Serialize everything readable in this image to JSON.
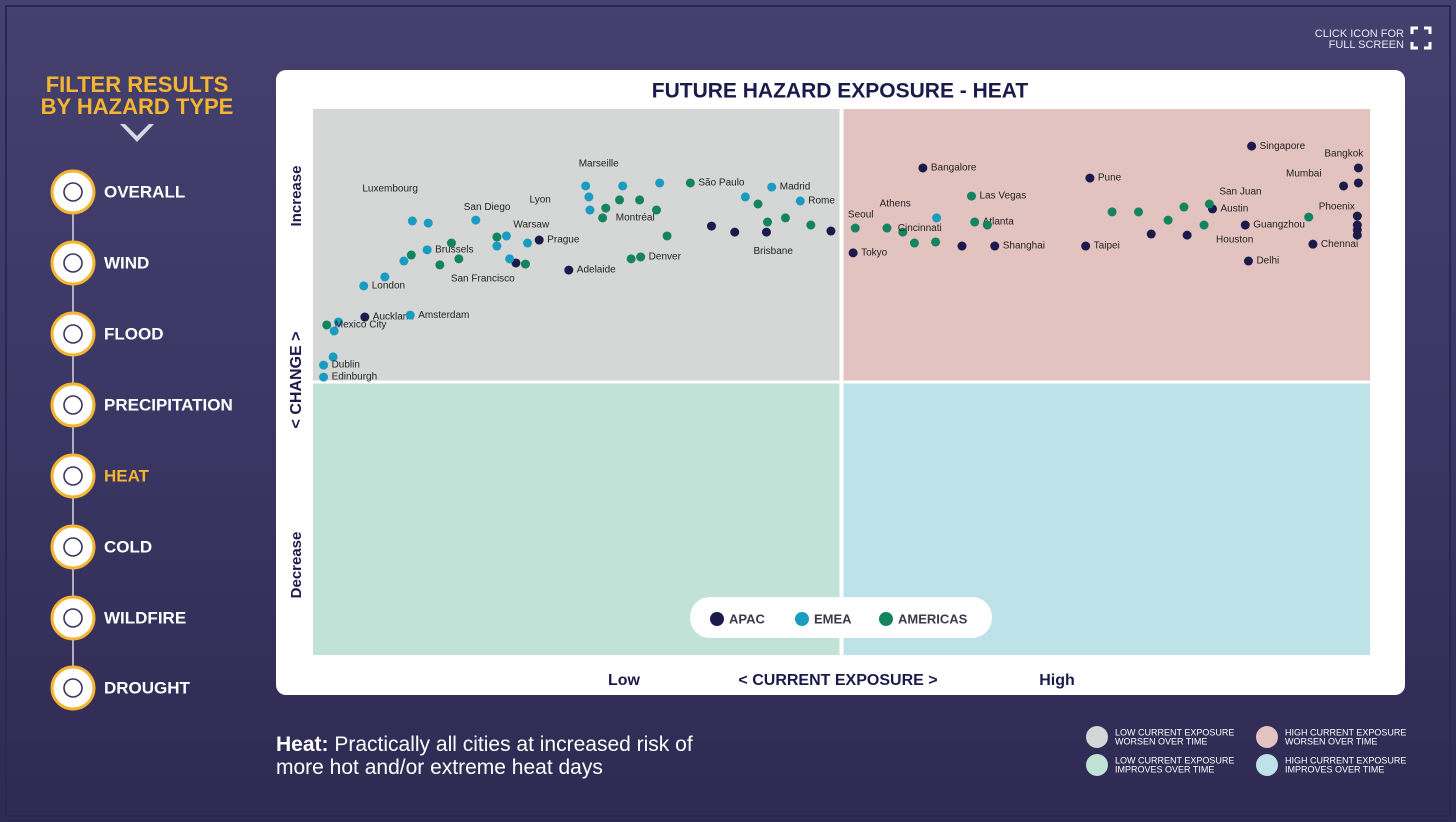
{
  "header": {
    "fullscreen_hint": [
      "CLICK ICON FOR",
      "FULL SCREEN"
    ]
  },
  "sidebar": {
    "title": [
      "FILTER RESULTS",
      "BY HAZARD TYPE"
    ],
    "items": [
      {
        "label": "OVERALL",
        "selected": false
      },
      {
        "label": "WIND",
        "selected": false
      },
      {
        "label": "FLOOD",
        "selected": false
      },
      {
        "label": "PRECIPITATION",
        "selected": false
      },
      {
        "label": "HEAT",
        "selected": true
      },
      {
        "label": "COLD",
        "selected": false
      },
      {
        "label": "WILDFIRE",
        "selected": false
      },
      {
        "label": "DROUGHT",
        "selected": false
      }
    ]
  },
  "chart_data": {
    "type": "scatter",
    "title": "FUTURE HAZARD EXPOSURE - HEAT",
    "xlabel": "< CURRENT EXPOSURE >",
    "x_low_label": "Low",
    "x_high_label": "High",
    "ylabel": "< CHANGE >",
    "y_high_label": "Increase",
    "y_low_label": "Decrease",
    "xlim": [
      0,
      100
    ],
    "ylim": [
      -100,
      100
    ],
    "series": [
      {
        "name": "APAC",
        "color": "#1c1a4a",
        "x": [
          57.7,
          88.8,
          98.9,
          97.5,
          98.9,
          73.5,
          49.0,
          51.1,
          64.5,
          61.4,
          73.1,
          42.9,
          37.7,
          39.9,
          24.2,
          4.9,
          21.4,
          19.2,
          85.1,
          88.2,
          82.7,
          79.3,
          88.5,
          94.6,
          98.8,
          98.8,
          98.8,
          98.8
        ],
        "values": [
          78.4,
          86.4,
          78.4,
          71.8,
          72.9,
          74.7,
          55.3,
          47.3,
          49.8,
          49.8,
          49.8,
          54.9,
          57.1,
          54.9,
          41.0,
          23.8,
          52.0,
          43.6,
          63.4,
          57.5,
          53.8,
          54.2,
          44.3,
          50.5,
          60.8,
          57.5,
          55.7,
          53.8
        ],
        "labels": [
          "Bangalore",
          "Singapore",
          "Bangkok",
          "Mumbai",
          null,
          "Pune",
          "Seoul",
          "Tokyo",
          "Shanghai",
          null,
          "Taipei",
          "Brisbane",
          null,
          null,
          "Adelaide",
          "Auckland",
          "Prague",
          null,
          "Austin",
          "Guangzhou",
          null,
          null,
          "Delhi",
          "Chennai",
          null,
          null,
          null,
          null
        ]
      },
      {
        "name": "EMEA",
        "color": "#1a9cc0",
        "x": [
          9.4,
          10.9,
          25.8,
          29.3,
          32.8,
          26.1,
          26.2,
          43.4,
          40.9,
          46.1,
          15.4,
          18.3,
          17.4,
          20.3,
          18.6,
          10.8,
          8.6,
          6.8,
          4.8,
          9.2,
          2.4,
          2.0,
          1.9,
          1.0,
          1.0,
          59.0
        ],
        "values": [
          59.0,
          58.2,
          71.8,
          71.8,
          72.9,
          67.8,
          63.0,
          71.4,
          67.8,
          66.3,
          59.3,
          53.5,
          49.8,
          50.9,
          45.1,
          48.4,
          44.3,
          38.5,
          35.2,
          24.5,
          22.0,
          18.7,
          9.2,
          6.2,
          1.8,
          60.1
        ],
        "labels": [
          "Luxembourg",
          null,
          "Marseille",
          null,
          null,
          "Lyon",
          null,
          "Madrid",
          null,
          "Rome",
          "San Diego",
          "Warsaw",
          null,
          null,
          null,
          "Brussels",
          null,
          null,
          "London",
          "Amsterdam",
          null,
          null,
          null,
          "Dublin",
          "Edinburgh",
          "Athens"
        ]
      },
      {
        "name": "AMERICAS",
        "color": "#13845d",
        "x": [
          35.7,
          27.7,
          29.0,
          30.9,
          27.4,
          32.5,
          33.5,
          31.0,
          30.1,
          42.1,
          43.0,
          44.7,
          47.1,
          12.0,
          13.8,
          13.1,
          9.3,
          17.4,
          20.1,
          1.3,
          55.8,
          56.9,
          58.9,
          54.3,
          51.3,
          62.3,
          62.6,
          63.8,
          84.8,
          82.4,
          75.6,
          78.1,
          80.9,
          84.3,
          94.2
        ],
        "values": [
          72.9,
          63.7,
          66.7,
          66.7,
          60.1,
          63.0,
          53.5,
          45.8,
          45.1,
          65.2,
          58.6,
          60.1,
          57.5,
          42.9,
          45.1,
          50.9,
          46.5,
          53.1,
          43.2,
          20.9,
          54.9,
          50.9,
          51.3,
          56.4,
          56.4,
          68.1,
          58.6,
          57.5,
          65.2,
          64.1,
          62.3,
          62.3,
          59.3,
          57.5,
          60.4
        ],
        "labels": [
          "São Paulo",
          "Montréal",
          null,
          null,
          null,
          null,
          null,
          "Denver",
          null,
          null,
          null,
          null,
          null,
          "San Francisco",
          null,
          null,
          null,
          null,
          null,
          "Mexico City",
          "Cincinnati",
          null,
          null,
          null,
          null,
          "Las Vegas",
          "Atlanta",
          null,
          "San Juan",
          null,
          null,
          null,
          null,
          "Houston",
          "Phoenix"
        ]
      }
    ]
  },
  "caption": {
    "lead": "Heat:",
    "text": "Practically all cities at increased risk of more hot and/or extreme heat days"
  },
  "quadrant_legend": [
    {
      "lines": [
        "LOW CURRENT EXPOSURE",
        "WORSEN OVER TIME"
      ],
      "color": "#d5d6d6"
    },
    {
      "lines": [
        "HIGH CURRENT EXPOSURE",
        "WORSEN OVER TIME"
      ],
      "color": "#e3c3bf"
    },
    {
      "lines": [
        "LOW CURRENT EXPOSURE",
        "IMPROVES OVER TIME"
      ],
      "color": "#c1e2d7"
    },
    {
      "lines": [
        "HIGH CURRENT EXPOSURE",
        "IMPROVES OVER TIME"
      ],
      "color": "#bde3e8"
    }
  ]
}
